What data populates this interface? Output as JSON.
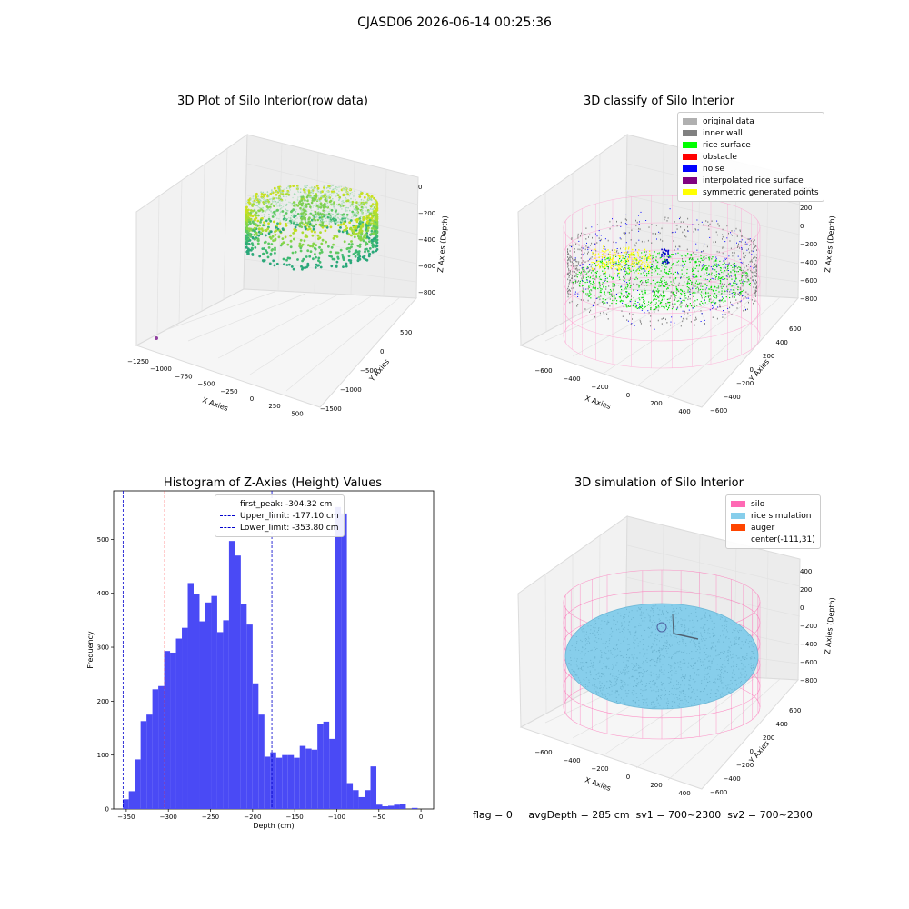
{
  "figure": {
    "suptitle": "CJASD06 2026-06-14 00:25:36",
    "footer": "flag = 0     avgDepth = 285 cm  sv1 = 700~2300  sv2 = 700~2300"
  },
  "panels": {
    "raw": {
      "title": "3D Plot of Silo Interior(row data)",
      "xlabel": "X Axies",
      "ylabel": "Y Axies",
      "zlabel": "Z Axies (Depth)",
      "xticks": [
        "−1250",
        "−1000",
        "−750",
        "−500",
        "−250",
        "0",
        "250",
        "500"
      ],
      "yticks": [
        "500",
        "0",
        "−500",
        "−1000",
        "−1500"
      ],
      "zticks": [
        "0",
        "−200",
        "−400",
        "−600",
        "−800"
      ]
    },
    "classify": {
      "title": "3D classify of Silo Interior",
      "xlabel": "X Axies",
      "ylabel": "Y Axies",
      "zlabel": "Z Axies (Depth)",
      "xticks": [
        "−600",
        "−400",
        "−200",
        "0",
        "200",
        "400"
      ],
      "yticks": [
        "600",
        "400",
        "200",
        "0",
        "−200",
        "−400",
        "−600"
      ],
      "zticks": [
        "400",
        "200",
        "0",
        "−200",
        "−400",
        "−600",
        "−800"
      ],
      "legend": [
        {
          "label": "original data",
          "color": "#b0b0b0"
        },
        {
          "label": "inner wall",
          "color": "#808080"
        },
        {
          "label": "rice surface",
          "color": "#00ff00"
        },
        {
          "label": "obstacle",
          "color": "#ff0000"
        },
        {
          "label": "noise",
          "color": "#0000ff"
        },
        {
          "label": "interpolated rice surface",
          "color": "#800080"
        },
        {
          "label": "symmetric generated points",
          "color": "#ffff00"
        }
      ]
    },
    "simulation": {
      "title": "3D simulation of Silo Interior",
      "xlabel": "X Axies",
      "ylabel": "Y Axies",
      "zlabel": "Z Axies (Depth)",
      "xticks": [
        "−600",
        "−400",
        "−200",
        "0",
        "200",
        "400"
      ],
      "yticks": [
        "600",
        "400",
        "200",
        "0",
        "−200",
        "−400",
        "−600"
      ],
      "zticks": [
        "400",
        "200",
        "0",
        "−200",
        "−400",
        "−600",
        "−800"
      ],
      "legend": [
        {
          "label": "silo",
          "color": "#ff69b4"
        },
        {
          "label": "rice simulation",
          "color": "#87ceeb"
        },
        {
          "label": "auger",
          "color": "#ff4500"
        },
        {
          "label": "center(-111,31)",
          "color": ""
        }
      ]
    }
  },
  "chart_data": [
    {
      "type": "bar",
      "title": "Histogram of Z-Axies (Height) Values",
      "xlabel": "Depth (cm)",
      "ylabel": "Frequency",
      "xlim": [
        -365,
        15
      ],
      "ylim": [
        0,
        590
      ],
      "xticks": [
        -350,
        -300,
        -250,
        -200,
        -150,
        -100,
        -50,
        0
      ],
      "yticks": [
        0,
        100,
        200,
        300,
        400,
        500
      ],
      "bin_start": -354,
      "bin_width": 7,
      "bar_color": "#4a4af5",
      "values": [
        18,
        33,
        92,
        163,
        175,
        222,
        228,
        293,
        290,
        316,
        336,
        419,
        398,
        348,
        383,
        395,
        328,
        350,
        497,
        470,
        380,
        342,
        233,
        175,
        97,
        105,
        95,
        100,
        100,
        95,
        117,
        112,
        110,
        157,
        162,
        130,
        560,
        548,
        48,
        35,
        22,
        35,
        79,
        8,
        5,
        6,
        8,
        10,
        0,
        2
      ],
      "vlines": [
        {
          "label": "first_peak: -304.32 cm",
          "x": -304.32,
          "color": "#ff0000"
        },
        {
          "label": "Upper_limit: -177.10 cm",
          "x": -177.1,
          "color": "#0000cc"
        },
        {
          "label": "Lower_limit: -353.80 cm",
          "x": -353.8,
          "color": "#0000cc"
        }
      ],
      "legend_position": "top-center"
    }
  ]
}
